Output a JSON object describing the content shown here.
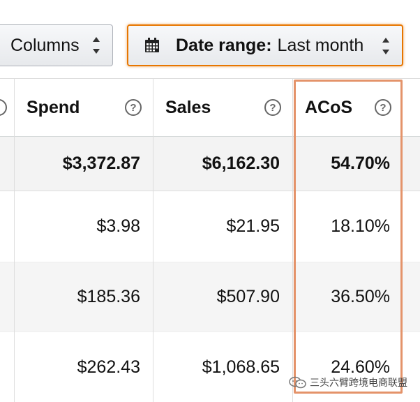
{
  "toolbar": {
    "columns_label": "Columns",
    "date_range_label": "Date range:",
    "date_range_value": "Last month"
  },
  "table": {
    "headers": {
      "spend": "Spend",
      "sales": "Sales",
      "acos": "ACoS",
      "help_glyph": "?"
    },
    "totals": {
      "spend": "$3,372.87",
      "sales": "$6,162.30",
      "acos": "54.70%"
    },
    "rows": [
      {
        "spend": "$3.98",
        "sales": "$21.95",
        "acos": "18.10%"
      },
      {
        "spend": "$185.36",
        "sales": "$507.90",
        "acos": "36.50%"
      },
      {
        "spend": "$262.43",
        "sales": "$1,068.65",
        "acos": "24.60%"
      }
    ]
  },
  "highlight_color": "#e4936a",
  "accent_color": "#e77600",
  "watermark": {
    "text": "三头六臂跨境电商联盟",
    "icon": "wechat-icon"
  }
}
